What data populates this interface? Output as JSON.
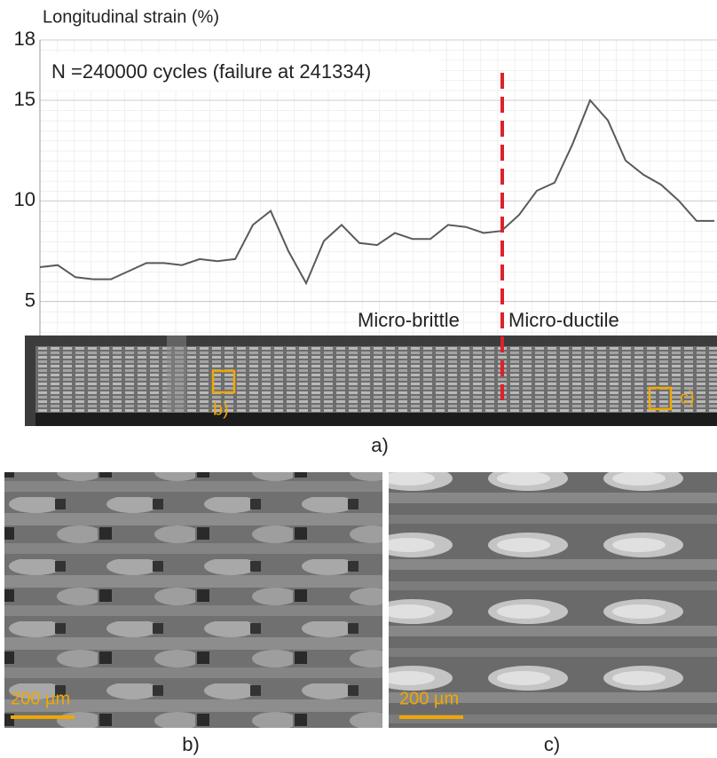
{
  "chart_data": {
    "type": "line",
    "y_label": "Longitudinal strain (%)",
    "annotation": "N =240000 cycles (failure at 241334)",
    "regions": [
      "Micro-brittle",
      "Micro-ductile"
    ],
    "panel_label": "a)",
    "values": [
      6.7,
      6.8,
      6.2,
      6.1,
      6.1,
      6.5,
      6.9,
      6.9,
      6.8,
      7.1,
      7.0,
      7.1,
      8.8,
      9.5,
      7.5,
      5.9,
      8.0,
      8.8,
      7.9,
      7.8,
      8.4,
      8.1,
      8.1,
      8.8,
      8.7,
      8.4,
      8.5,
      9.3,
      10.5,
      10.9,
      12.8,
      15.0,
      14.0,
      12.0,
      11.3,
      10.8,
      10.0,
      9.0,
      9.0
    ],
    "color": "#5a5a5a",
    "ylim": [
      3.3,
      18
    ],
    "yticks": [
      5,
      10,
      15,
      18
    ],
    "grid": true
  },
  "strip": {
    "markers": [
      "b)",
      "c)"
    ]
  },
  "panels": [
    {
      "label": "b)",
      "scale_bar": "200 µm"
    },
    {
      "label": "c)",
      "scale_bar": "200 µm"
    }
  ]
}
